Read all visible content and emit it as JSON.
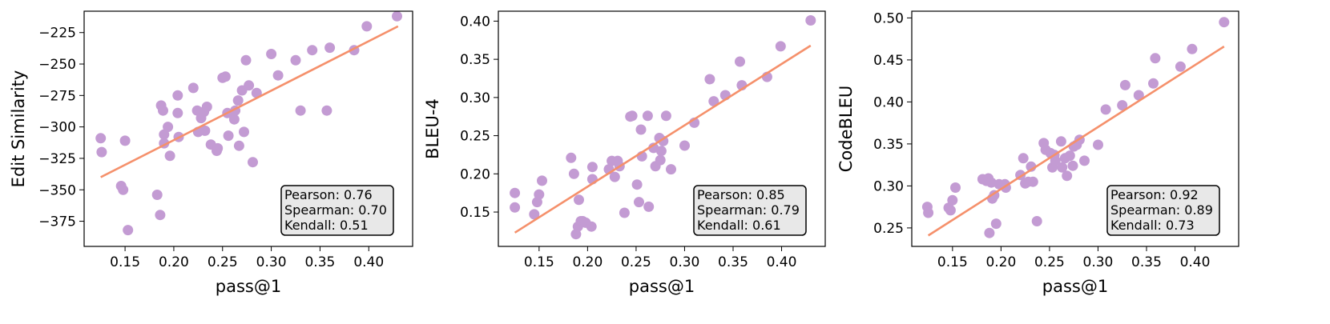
{
  "colors": {
    "point": "#c39bd3",
    "fit_line": "#f5906b"
  },
  "chart_data": [
    {
      "type": "scatter",
      "xlabel": "pass@1",
      "ylabel": "Edit Similarity",
      "xlim": [
        0.108,
        0.445
      ],
      "ylim": [
        -395,
        -208
      ],
      "xticks": [
        0.15,
        0.2,
        0.25,
        0.3,
        0.35,
        0.4
      ],
      "xtick_labels": [
        "0.15",
        "0.20",
        "0.25",
        "0.30",
        "0.35",
        "0.40"
      ],
      "yticks": [
        -375,
        -350,
        -325,
        -300,
        -275,
        -250,
        -225
      ],
      "ytick_labels": [
        "−375",
        "−350",
        "−325",
        "−300",
        "−275",
        "−250",
        "−225"
      ],
      "fit_line": {
        "x": [
          0.125,
          0.43
        ],
        "y": [
          -340,
          -220
        ]
      },
      "stats": [
        "Pearson: 0.76",
        "Spearman: 0.70",
        "Kendall: 0.51"
      ],
      "legend_position": "bottom-right",
      "points": [
        [
          0.125,
          -309
        ],
        [
          0.126,
          -320
        ],
        [
          0.146,
          -347
        ],
        [
          0.148,
          -350
        ],
        [
          0.15,
          -311
        ],
        [
          0.153,
          -382
        ],
        [
          0.183,
          -354
        ],
        [
          0.186,
          -370
        ],
        [
          0.187,
          -283
        ],
        [
          0.189,
          -287
        ],
        [
          0.19,
          -306
        ],
        [
          0.19,
          -313
        ],
        [
          0.194,
          -300
        ],
        [
          0.196,
          -323
        ],
        [
          0.204,
          -275
        ],
        [
          0.204,
          -289
        ],
        [
          0.205,
          -308
        ],
        [
          0.22,
          -269
        ],
        [
          0.224,
          -287
        ],
        [
          0.225,
          -304
        ],
        [
          0.228,
          -293
        ],
        [
          0.231,
          -288
        ],
        [
          0.232,
          -303
        ],
        [
          0.234,
          -284
        ],
        [
          0.238,
          -314
        ],
        [
          0.244,
          -319
        ],
        [
          0.245,
          -317
        ],
        [
          0.25,
          -261
        ],
        [
          0.253,
          -260
        ],
        [
          0.255,
          -289
        ],
        [
          0.256,
          -307
        ],
        [
          0.262,
          -294
        ],
        [
          0.263,
          -287
        ],
        [
          0.266,
          -279
        ],
        [
          0.267,
          -315
        ],
        [
          0.27,
          -271
        ],
        [
          0.272,
          -304
        ],
        [
          0.274,
          -247
        ],
        [
          0.277,
          -267
        ],
        [
          0.281,
          -328
        ],
        [
          0.285,
          -273
        ],
        [
          0.3,
          -242
        ],
        [
          0.307,
          -259
        ],
        [
          0.325,
          -247
        ],
        [
          0.33,
          -287
        ],
        [
          0.342,
          -239
        ],
        [
          0.357,
          -287
        ],
        [
          0.36,
          -237
        ],
        [
          0.385,
          -239
        ],
        [
          0.398,
          -220
        ],
        [
          0.429,
          -212
        ]
      ]
    },
    {
      "type": "scatter",
      "xlabel": "pass@1",
      "ylabel": "BLEU-4",
      "xlim": [
        0.108,
        0.445
      ],
      "ylim": [
        0.105,
        0.413
      ],
      "xticks": [
        0.15,
        0.2,
        0.25,
        0.3,
        0.35,
        0.4
      ],
      "xtick_labels": [
        "0.15",
        "0.20",
        "0.25",
        "0.30",
        "0.35",
        "0.40"
      ],
      "yticks": [
        0.15,
        0.2,
        0.25,
        0.3,
        0.35,
        0.4
      ],
      "ytick_labels": [
        "0.15",
        "0.20",
        "0.25",
        "0.30",
        "0.35",
        "0.40"
      ],
      "fit_line": {
        "x": [
          0.125,
          0.43
        ],
        "y": [
          0.123,
          0.368
        ]
      },
      "stats": [
        "Pearson: 0.85",
        "Spearman: 0.79",
        "Kendall: 0.61"
      ],
      "legend_position": "bottom-right",
      "points": [
        [
          0.125,
          0.175
        ],
        [
          0.125,
          0.156
        ],
        [
          0.145,
          0.147
        ],
        [
          0.148,
          0.163
        ],
        [
          0.15,
          0.173
        ],
        [
          0.153,
          0.191
        ],
        [
          0.183,
          0.221
        ],
        [
          0.186,
          0.2
        ],
        [
          0.188,
          0.121
        ],
        [
          0.19,
          0.131
        ],
        [
          0.191,
          0.166
        ],
        [
          0.193,
          0.138
        ],
        [
          0.195,
          0.138
        ],
        [
          0.198,
          0.136
        ],
        [
          0.204,
          0.131
        ],
        [
          0.205,
          0.209
        ],
        [
          0.205,
          0.193
        ],
        [
          0.222,
          0.206
        ],
        [
          0.225,
          0.217
        ],
        [
          0.228,
          0.196
        ],
        [
          0.231,
          0.217
        ],
        [
          0.233,
          0.21
        ],
        [
          0.238,
          0.149
        ],
        [
          0.244,
          0.275
        ],
        [
          0.246,
          0.276
        ],
        [
          0.251,
          0.186
        ],
        [
          0.253,
          0.163
        ],
        [
          0.255,
          0.258
        ],
        [
          0.256,
          0.223
        ],
        [
          0.262,
          0.276
        ],
        [
          0.263,
          0.157
        ],
        [
          0.268,
          0.234
        ],
        [
          0.27,
          0.21
        ],
        [
          0.274,
          0.247
        ],
        [
          0.275,
          0.218
        ],
        [
          0.276,
          0.23
        ],
        [
          0.278,
          0.243
        ],
        [
          0.281,
          0.276
        ],
        [
          0.286,
          0.206
        ],
        [
          0.3,
          0.237
        ],
        [
          0.31,
          0.267
        ],
        [
          0.326,
          0.324
        ],
        [
          0.33,
          0.295
        ],
        [
          0.342,
          0.303
        ],
        [
          0.357,
          0.347
        ],
        [
          0.359,
          0.316
        ],
        [
          0.385,
          0.327
        ],
        [
          0.399,
          0.367
        ],
        [
          0.43,
          0.401
        ]
      ]
    },
    {
      "type": "scatter",
      "xlabel": "pass@1",
      "ylabel": "CodeBLEU",
      "xlim": [
        0.108,
        0.445
      ],
      "ylim": [
        0.228,
        0.508
      ],
      "xticks": [
        0.15,
        0.2,
        0.25,
        0.3,
        0.35,
        0.4
      ],
      "xtick_labels": [
        "0.15",
        "0.20",
        "0.25",
        "0.30",
        "0.35",
        "0.40"
      ],
      "yticks": [
        0.25,
        0.3,
        0.35,
        0.4,
        0.45,
        0.5
      ],
      "ytick_labels": [
        "0.25",
        "0.30",
        "0.35",
        "0.40",
        "0.45",
        "0.50"
      ],
      "fit_line": {
        "x": [
          0.125,
          0.43
        ],
        "y": [
          0.241,
          0.466
        ]
      },
      "stats": [
        "Pearson: 0.92",
        "Spearman: 0.89",
        "Kendall: 0.73"
      ],
      "legend_position": "bottom-right",
      "points": [
        [
          0.124,
          0.275
        ],
        [
          0.125,
          0.268
        ],
        [
          0.146,
          0.274
        ],
        [
          0.148,
          0.271
        ],
        [
          0.15,
          0.283
        ],
        [
          0.153,
          0.298
        ],
        [
          0.181,
          0.308
        ],
        [
          0.185,
          0.306
        ],
        [
          0.187,
          0.309
        ],
        [
          0.188,
          0.244
        ],
        [
          0.19,
          0.304
        ],
        [
          0.191,
          0.285
        ],
        [
          0.193,
          0.289
        ],
        [
          0.195,
          0.255
        ],
        [
          0.198,
          0.302
        ],
        [
          0.204,
          0.302
        ],
        [
          0.205,
          0.298
        ],
        [
          0.22,
          0.313
        ],
        [
          0.223,
          0.333
        ],
        [
          0.225,
          0.303
        ],
        [
          0.228,
          0.305
        ],
        [
          0.231,
          0.323
        ],
        [
          0.233,
          0.305
        ],
        [
          0.237,
          0.258
        ],
        [
          0.244,
          0.351
        ],
        [
          0.246,
          0.343
        ],
        [
          0.251,
          0.339
        ],
        [
          0.253,
          0.322
        ],
        [
          0.255,
          0.337
        ],
        [
          0.256,
          0.33
        ],
        [
          0.262,
          0.353
        ],
        [
          0.263,
          0.322
        ],
        [
          0.266,
          0.333
        ],
        [
          0.268,
          0.312
        ],
        [
          0.271,
          0.336
        ],
        [
          0.274,
          0.324
        ],
        [
          0.275,
          0.347
        ],
        [
          0.278,
          0.349
        ],
        [
          0.281,
          0.355
        ],
        [
          0.286,
          0.33
        ],
        [
          0.3,
          0.349
        ],
        [
          0.308,
          0.391
        ],
        [
          0.325,
          0.396
        ],
        [
          0.328,
          0.42
        ],
        [
          0.342,
          0.408
        ],
        [
          0.357,
          0.422
        ],
        [
          0.359,
          0.452
        ],
        [
          0.385,
          0.442
        ],
        [
          0.397,
          0.463
        ],
        [
          0.43,
          0.495
        ]
      ]
    }
  ]
}
